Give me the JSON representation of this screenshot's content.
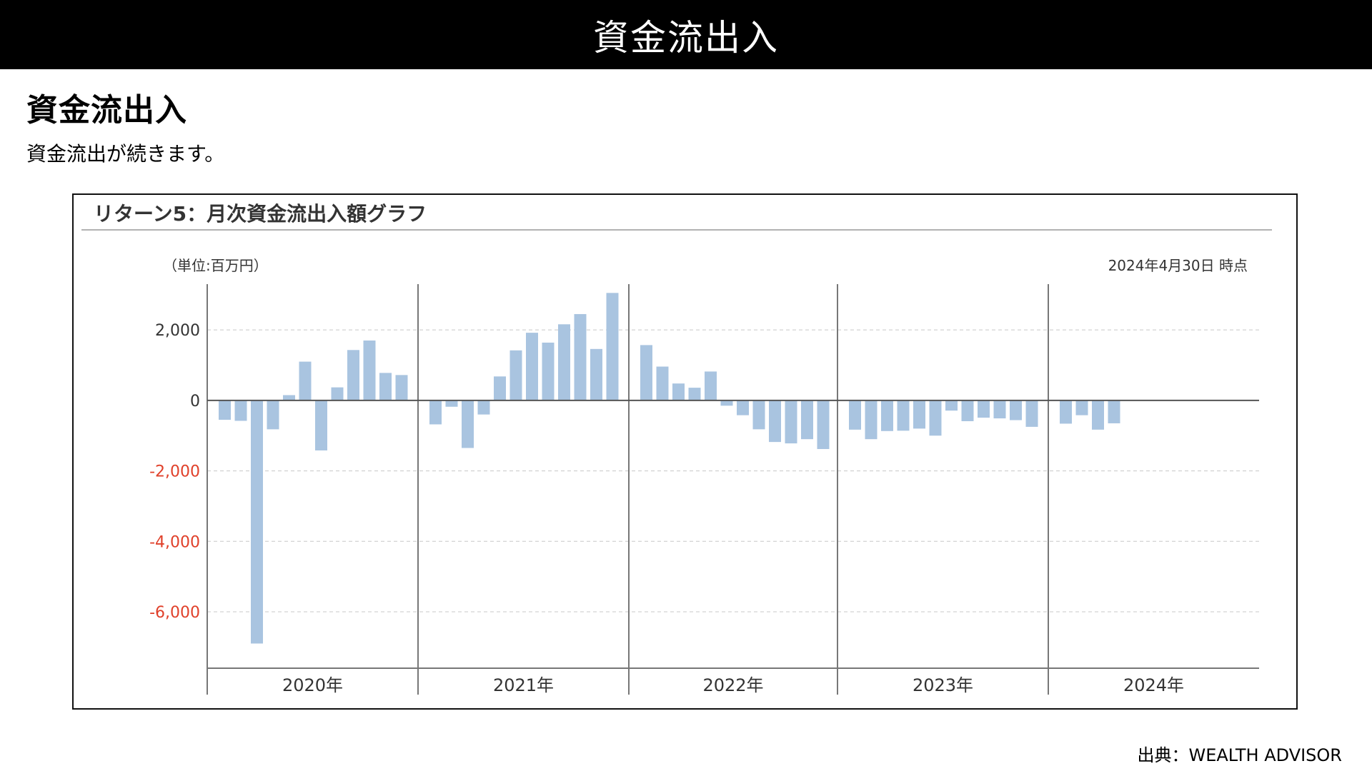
{
  "header": {
    "title": "資金流出入"
  },
  "page": {
    "heading": "資金流出入",
    "subtext": "資金流出が続きます。",
    "source": "出典：WEALTH ADVISOR"
  },
  "chart_data": {
    "type": "bar",
    "title": "リターン5：月次資金流出入額グラフ",
    "unit_label": "（単位:百万円）",
    "as_of": "2024年4月30日 時点",
    "ylim": [
      -7600,
      3300
    ],
    "yticks": [
      {
        "value": 2000,
        "label": "2,000",
        "color": "#333333"
      },
      {
        "value": 0,
        "label": "0",
        "color": "#333333"
      },
      {
        "value": -2000,
        "label": "-2,000",
        "color": "#e0402a"
      },
      {
        "value": -4000,
        "label": "-4,000",
        "color": "#e0402a"
      },
      {
        "value": -6000,
        "label": "-6,000",
        "color": "#e0402a"
      }
    ],
    "groups": [
      {
        "label": "2020年",
        "values": [
          -550,
          -580,
          -6900,
          -820,
          150,
          1100,
          -1420,
          370,
          1430,
          1700,
          780,
          720
        ]
      },
      {
        "label": "2021年",
        "values": [
          -680,
          -180,
          -1350,
          -400,
          680,
          1420,
          1920,
          1640,
          2160,
          2450,
          1460,
          3050
        ]
      },
      {
        "label": "2022年",
        "values": [
          1570,
          960,
          480,
          360,
          820,
          -150,
          -420,
          -820,
          -1180,
          -1220,
          -1100,
          -1380
        ]
      },
      {
        "label": "2023年",
        "values": [
          -830,
          -1100,
          -870,
          -860,
          -800,
          -1000,
          -290,
          -590,
          -490,
          -510,
          -560,
          -750
        ]
      },
      {
        "label": "2024年",
        "values": [
          -660,
          -420,
          -830,
          -650
        ]
      }
    ],
    "bar_color": "#a9c4e0",
    "grid": true
  }
}
